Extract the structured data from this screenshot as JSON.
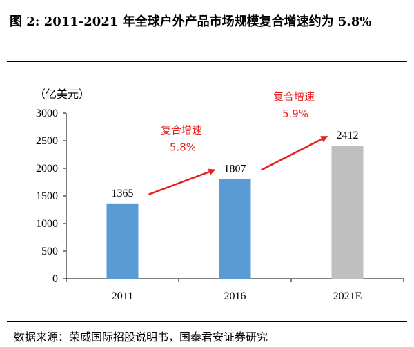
{
  "title": "图 2: 2011-2021 年全球户外产品市场规模复合增速约为 5.8%",
  "source": "数据来源：荣威国际招股说明书，国泰君安证券研究",
  "colors": {
    "actual": "#5b9bd5",
    "estimate": "#bfbfbf",
    "annotation": "#e8201c"
  },
  "chart_data": {
    "type": "bar",
    "unit_label": "（亿美元）",
    "categories": [
      "2011",
      "2016",
      "2021E"
    ],
    "values": [
      1365,
      1807,
      2412
    ],
    "data_labels": [
      "1365",
      "1807",
      "2412"
    ],
    "ylim": [
      0,
      3000
    ],
    "yticks": [
      "0",
      "500",
      "1000",
      "1500",
      "2000",
      "2500",
      "3000"
    ],
    "grid": false,
    "annotations": [
      {
        "label": "复合增速",
        "value": "5.8%",
        "from": "2011",
        "to": "2016"
      },
      {
        "label": "复合增速",
        "value": "5.9%",
        "from": "2016",
        "to": "2021E"
      }
    ]
  }
}
